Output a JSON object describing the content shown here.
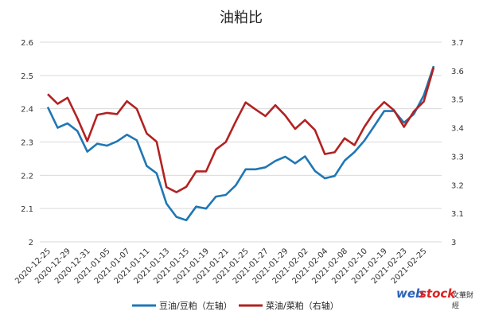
{
  "chart_data": {
    "type": "line",
    "title": "油粕比",
    "categories": [
      "2020-12-25",
      "2020-12-29",
      "2020-12-31",
      "2021-01-05",
      "2021-01-07",
      "2021-01-11",
      "2021-01-13",
      "2021-01-15",
      "2021-01-19",
      "2021-01-21",
      "2021-01-25",
      "2021-01-27",
      "2021-01-29",
      "2021-02-02",
      "2021-02-04",
      "2021-02-08",
      "2021-02-10",
      "2021-02-19",
      "2021-02-23",
      "2021-02-25"
    ],
    "x": [
      "2020-12-25",
      "2020-12-28",
      "2020-12-29",
      "2020-12-30",
      "2020-12-31",
      "2021-01-04",
      "2021-01-05",
      "2021-01-06",
      "2021-01-07",
      "2021-01-08",
      "2021-01-11",
      "2021-01-12",
      "2021-01-13",
      "2021-01-14",
      "2021-01-15",
      "2021-01-18",
      "2021-01-19",
      "2021-01-20",
      "2021-01-21",
      "2021-01-22",
      "2021-01-25",
      "2021-01-26",
      "2021-01-27",
      "2021-01-28",
      "2021-01-29",
      "2021-02-01",
      "2021-02-02",
      "2021-02-03",
      "2021-02-04",
      "2021-02-05",
      "2021-02-08",
      "2021-02-09",
      "2021-02-10",
      "2021-02-18",
      "2021-02-19",
      "2021-02-22",
      "2021-02-23",
      "2021-02-24",
      "2021-02-25",
      "2021-02-26"
    ],
    "series": [
      {
        "name": "豆油/豆粕（左轴）",
        "axis": "left",
        "color": "#1f77b4",
        "values": [
          2.405,
          2.343,
          2.356,
          2.333,
          2.271,
          2.295,
          2.289,
          2.302,
          2.322,
          2.305,
          2.228,
          2.206,
          2.115,
          2.075,
          2.065,
          2.106,
          2.1,
          2.136,
          2.141,
          2.17,
          2.218,
          2.218,
          2.224,
          2.243,
          2.256,
          2.236,
          2.257,
          2.213,
          2.191,
          2.198,
          2.244,
          2.27,
          2.304,
          2.348,
          2.393,
          2.393,
          2.358,
          2.384,
          2.44,
          2.528
        ]
      },
      {
        "name": "菜油/菜粕（右轴）",
        "axis": "right",
        "color": "#b22222",
        "values": [
          3.518,
          3.484,
          3.505,
          3.433,
          3.353,
          3.445,
          3.452,
          3.448,
          3.493,
          3.466,
          3.38,
          3.351,
          3.192,
          3.174,
          3.193,
          3.247,
          3.247,
          3.324,
          3.35,
          3.422,
          3.489,
          3.464,
          3.441,
          3.479,
          3.443,
          3.396,
          3.427,
          3.392,
          3.308,
          3.314,
          3.363,
          3.339,
          3.403,
          3.455,
          3.49,
          3.461,
          3.403,
          3.457,
          3.492,
          3.611
        ]
      }
    ],
    "y_left": {
      "min": 2,
      "max": 2.6,
      "ticks": [
        "2",
        "2.1",
        "2.2",
        "2.3",
        "2.4",
        "2.5",
        "2.6"
      ]
    },
    "y_right": {
      "min": 3,
      "max": 3.7,
      "ticks": [
        "3",
        "3.1",
        "3.2",
        "3.3",
        "3.4",
        "3.5",
        "3.6",
        "3.7"
      ]
    },
    "grid": true,
    "legend": "bottom"
  },
  "watermark": {
    "brand_a": "web",
    "brand_b": "stock",
    "cn": "文華財經"
  }
}
